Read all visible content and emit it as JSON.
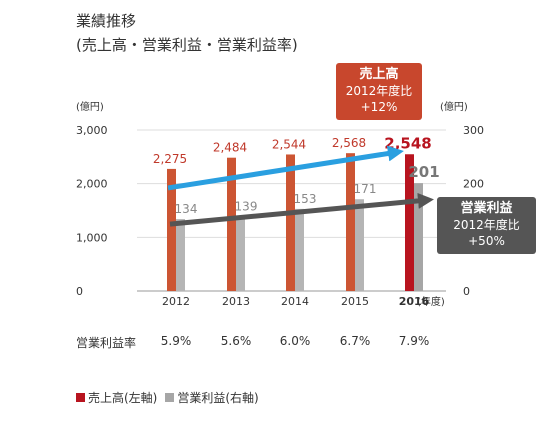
{
  "header": {
    "title": "業績推移",
    "subtitle": "(売上高・営業利益・営業利益率)"
  },
  "chart_data": {
    "type": "bar",
    "categories": [
      "2012",
      "2013",
      "2014",
      "2015",
      "2016"
    ],
    "x_unit": "(年度)",
    "left_axis": {
      "unit": "(億円)",
      "ylim": [
        0,
        3000
      ],
      "ticks": [
        "0",
        "1,000",
        "2,000",
        "3,000"
      ]
    },
    "right_axis": {
      "unit": "(億円)",
      "ylim": [
        0,
        300
      ],
      "ticks": [
        "0",
        "100",
        "200",
        "300"
      ]
    },
    "series": [
      {
        "name": "売上高(左軸)",
        "axis": "left",
        "color": "#cc5533",
        "highlight_color": "#b8141f",
        "values": [
          2275,
          2484,
          2544,
          2568,
          2548
        ],
        "labels": [
          "2,275",
          "2,484",
          "2,544",
          "2,568",
          "2,548"
        ]
      },
      {
        "name": "営業利益(右軸)",
        "axis": "right",
        "color": "#b5b5b5",
        "highlight_color": "#a6a6a6",
        "values": [
          134,
          139,
          153,
          171,
          201
        ],
        "labels": [
          "134",
          "139",
          "153",
          "171",
          "201"
        ]
      }
    ],
    "highlight_category": "2016",
    "grid": true,
    "legend_position": "bottom-left",
    "trend_arrows": [
      {
        "series": "売上高(左軸)",
        "color": "#2a9fe0"
      },
      {
        "series": "営業利益(右軸)",
        "color": "#555555"
      }
    ]
  },
  "callouts": {
    "sales": {
      "line1": "売上高",
      "line2": "2012年度比",
      "line3": "+12%",
      "color": "#c8472d"
    },
    "profit": {
      "line1": "営業利益",
      "line2": "2012年度比",
      "line3": "+50%",
      "color": "#555555"
    }
  },
  "ratio_row": {
    "label": "営業利益率",
    "values": [
      "5.9%",
      "5.6%",
      "6.0%",
      "6.7%",
      "7.9%"
    ]
  },
  "legend": {
    "items": [
      {
        "label": "売上高(左軸)",
        "color": "#b8141f"
      },
      {
        "label": "営業利益(右軸)",
        "color": "#a6a6a6"
      }
    ]
  }
}
